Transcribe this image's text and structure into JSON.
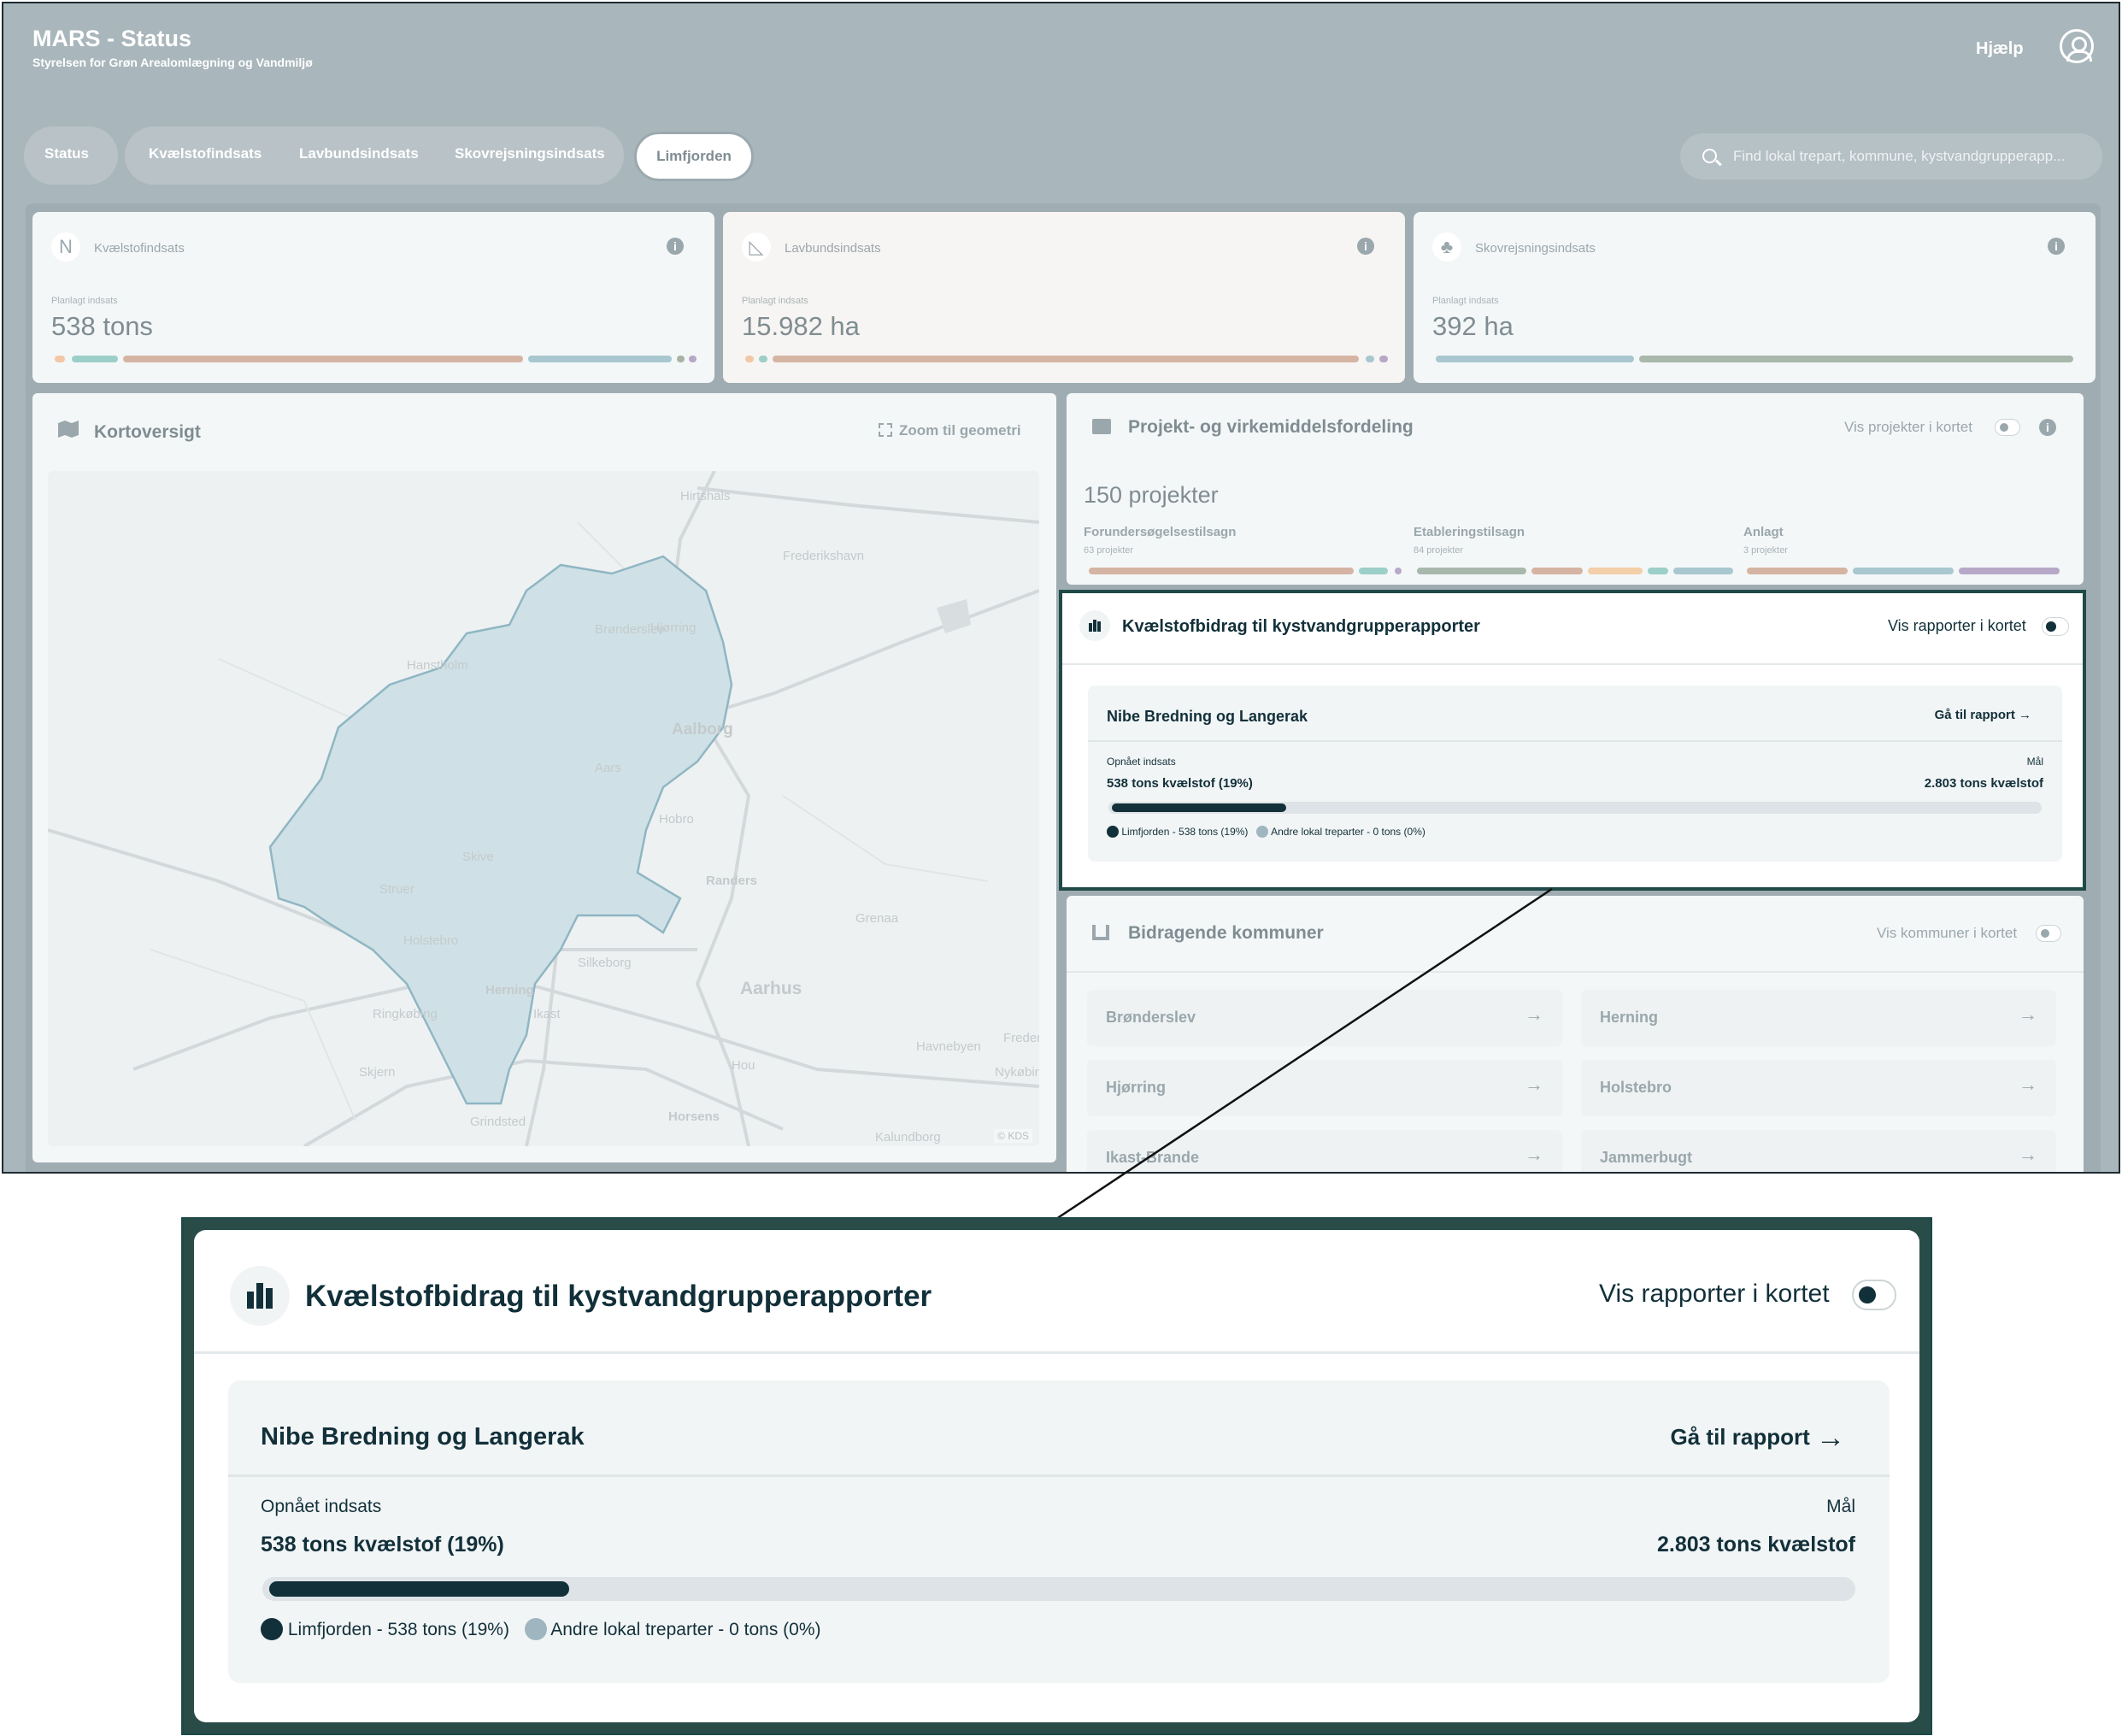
{
  "app": {
    "title": "MARS - Status",
    "subtitle": "Styrelsen for Grøn Arealomlægning og Vandmiljø",
    "help": "Hjælp"
  },
  "tabs": {
    "status": "Status",
    "kvaelstof": "Kvælstofindsats",
    "lavbund": "Lavbundsindsats",
    "skov": "Skovrejsningsindsats",
    "limfjorden": "Limfjorden"
  },
  "search": {
    "placeholder": "Find lokal trepart, kommune, kystvandgrupperapp..."
  },
  "kpis": [
    {
      "label": "Kvælstofindsats",
      "icon": "N",
      "planned_label": "Planlagt indsats",
      "value": "538 tons"
    },
    {
      "label": "Lavbundsindsats",
      "icon": "◺",
      "planned_label": "Planlagt indsats",
      "value": "15.982 ha"
    },
    {
      "label": "Skovrejsningsindsats",
      "icon": "♣",
      "planned_label": "Planlagt indsats",
      "value": "392 ha"
    }
  ],
  "map": {
    "title": "Kortoversigt",
    "zoom": "Zoom til geometri",
    "copyright": "© KDS",
    "places": [
      "Hirtshals",
      "Frederikshavn",
      "Hjørring",
      "Brønderslev",
      "Hanstholm",
      "Aalborg",
      "Aars",
      "Hobro",
      "Skive",
      "Struer",
      "Randers",
      "Grenaa",
      "Holstebro",
      "Silkeborg",
      "Herning",
      "Aarhus",
      "Ringkøbing",
      "Ikast",
      "Skjern",
      "Hou",
      "Horsens",
      "Grindsted",
      "Kalundborg",
      "Havnebyen",
      "Nykøbing",
      "Fredensborg"
    ]
  },
  "projects": {
    "title": "Projekt- og virkemiddelsfordeling",
    "toggle": "Vis projekter i kortet",
    "count": "150 projekter",
    "phases": [
      {
        "name": "Forundersøgelsestilsagn",
        "sub": "63 projekter"
      },
      {
        "name": "Etableringstilsagn",
        "sub": "84 projekter"
      },
      {
        "name": "Anlagt",
        "sub": "3 projekter"
      }
    ]
  },
  "reports": {
    "title": "Kvælstofbidrag til kystvandgrupperapporter",
    "toggle": "Vis rapporter i kortet",
    "group": "Nibe Bredning og Langerak",
    "goto": "Gå til rapport",
    "achieved_label": "Opnået indsats",
    "achieved": "538 tons kvælstof (19%)",
    "goal_label": "Mål",
    "goal": "2.803 tons kvælstof",
    "progress": 0.19,
    "legend": [
      {
        "label": "Limfjorden - 538 tons (19%)",
        "color": "#12303a"
      },
      {
        "label": "Andre lokal treparter - 0 tons (0%)",
        "color": "#9fb6c0"
      }
    ]
  },
  "municipalities": {
    "title": "Bidragende kommuner",
    "toggle": "Vis kommuner i kortet",
    "items": [
      "Brønderslev",
      "Herning",
      "Hjørring",
      "Holstebro",
      "Ikast-Brande",
      "Jammerbugt"
    ]
  }
}
